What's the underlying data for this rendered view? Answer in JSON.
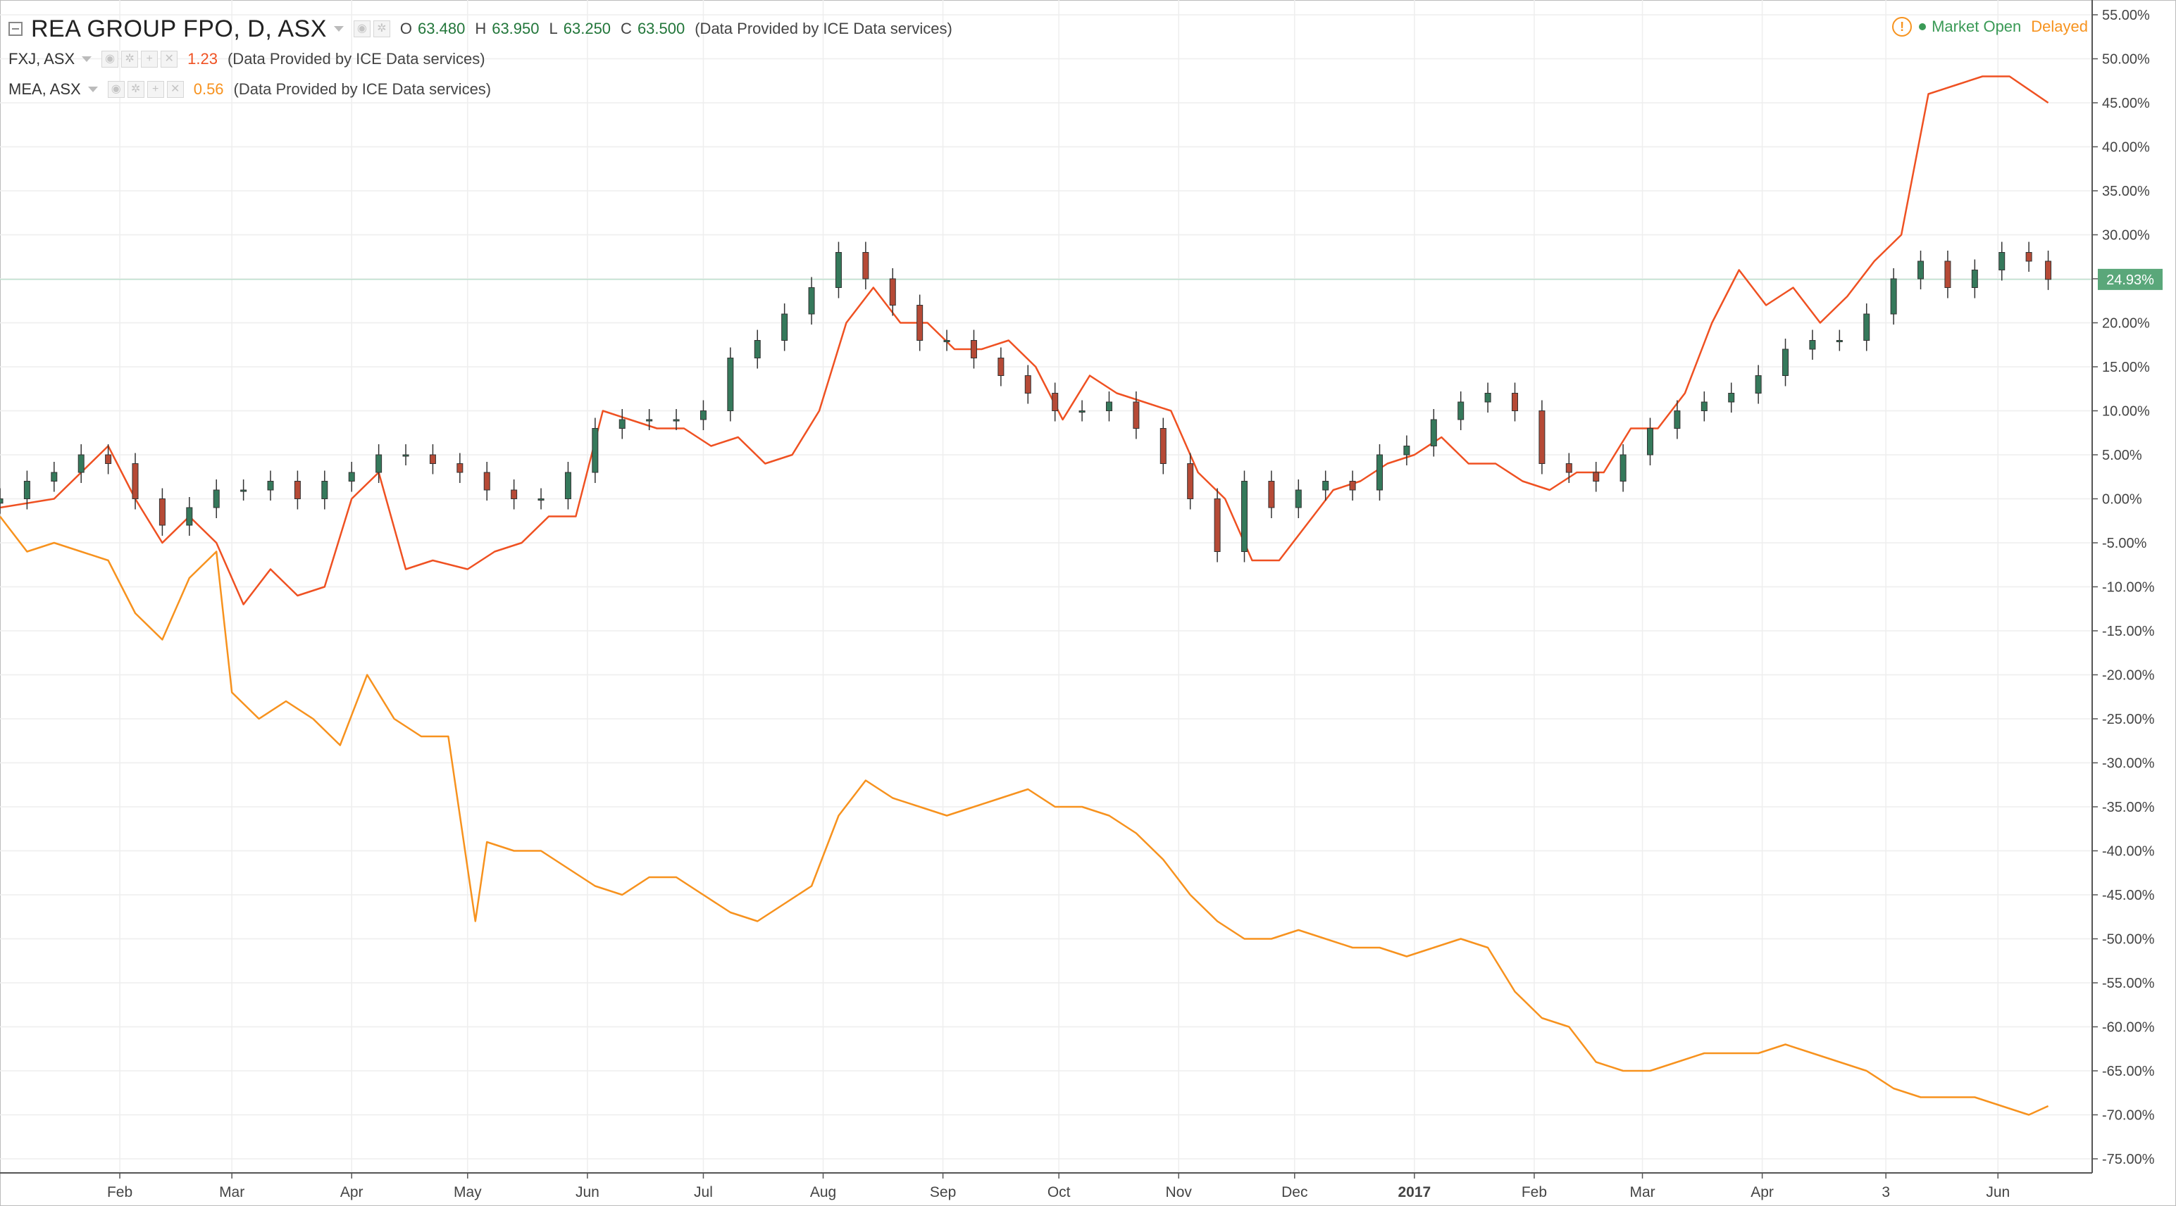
{
  "header": {
    "title": "REA GROUP FPO, D, ASX",
    "ohlc": [
      {
        "key": "O",
        "value": "63.480"
      },
      {
        "key": "H",
        "value": "63.950"
      },
      {
        "key": "L",
        "value": "63.250"
      },
      {
        "key": "C",
        "value": "63.500"
      }
    ],
    "provider": "(Data Provided by ICE Data services)",
    "status": {
      "market": "Market Open",
      "delay": "Delayed"
    }
  },
  "compare_rows": [
    {
      "symbol": "FXJ, ASX",
      "value": "1.23",
      "provider": "(Data Provided by ICE Data services)"
    },
    {
      "symbol": "MEA, ASX",
      "value": "0.56",
      "provider": "(Data Provided by ICE Data services)"
    }
  ],
  "icons": {
    "collapse": "collapse-square-icon",
    "warning": "warning-circle-icon",
    "status_dot": "market-open-dot-icon"
  },
  "colors": {
    "up_candle": "#35795b",
    "down_candle": "#b64a36",
    "fxj": "#ef5122",
    "mea": "#f7921e",
    "market_open": "#3a9a56",
    "last_price_label": "#5aa77a"
  },
  "chart_data": {
    "type": "line",
    "ylabel": "",
    "yunit": "%",
    "ylim": [
      -77,
      57
    ],
    "yticks": [
      55,
      50,
      45,
      40,
      35,
      30,
      25,
      20,
      15,
      10,
      5,
      0,
      -5,
      -10,
      -15,
      -20,
      -25,
      -30,
      -35,
      -40,
      -45,
      -50,
      -55,
      -60,
      -65,
      -70,
      -75
    ],
    "ytick_labels": [
      "55.00%",
      "50.00%",
      "45.00%",
      "40.00%",
      "35.00%",
      "30.00%",
      "25.00%",
      "20.00%",
      "15.00%",
      "10.00%",
      "5.00%",
      "0.00%",
      "-5.00%",
      "-10.00%",
      "-15.00%",
      "-20.00%",
      "-25.00%",
      "-30.00%",
      "-35.00%",
      "-40.00%",
      "-45.00%",
      "-50.00%",
      "-55.00%",
      "-60.00%",
      "-65.00%",
      "-70.00%",
      "-75.00%"
    ],
    "xlim": [
      "2016-01-01",
      "2017-06-19"
    ],
    "xticks": [
      {
        "date": "2016-02-01",
        "label": "Feb"
      },
      {
        "date": "2016-03-01",
        "label": "Mar"
      },
      {
        "date": "2016-04-01",
        "label": "Apr"
      },
      {
        "date": "2016-05-01",
        "label": "May"
      },
      {
        "date": "2016-06-01",
        "label": "Jun"
      },
      {
        "date": "2016-07-01",
        "label": "Jul"
      },
      {
        "date": "2016-08-01",
        "label": "Aug"
      },
      {
        "date": "2016-09-01",
        "label": "Sep"
      },
      {
        "date": "2016-10-01",
        "label": "Oct"
      },
      {
        "date": "2016-11-01",
        "label": "Nov"
      },
      {
        "date": "2016-12-01",
        "label": "Dec"
      },
      {
        "date": "2017-01-01",
        "label": "2017"
      },
      {
        "date": "2017-02-01",
        "label": "Feb"
      },
      {
        "date": "2017-03-01",
        "label": "Mar"
      },
      {
        "date": "2017-04-01",
        "label": "Apr"
      },
      {
        "date": "2017-05-03",
        "label": "3"
      },
      {
        "date": "2017-06-01",
        "label": "Jun"
      }
    ],
    "grid": true,
    "last_value_label": "24.93%",
    "last_value": 24.93,
    "series": [
      {
        "name": "REA GROUP FPO",
        "kind": "candlestick",
        "points": [
          [
            "2016-01-01",
            0
          ],
          [
            "2016-01-08",
            2
          ],
          [
            "2016-01-15",
            3
          ],
          [
            "2016-01-22",
            5
          ],
          [
            "2016-01-29",
            4
          ],
          [
            "2016-02-05",
            0
          ],
          [
            "2016-02-12",
            -3
          ],
          [
            "2016-02-19",
            -1
          ],
          [
            "2016-02-26",
            1
          ],
          [
            "2016-03-04",
            1
          ],
          [
            "2016-03-11",
            2
          ],
          [
            "2016-03-18",
            0
          ],
          [
            "2016-03-25",
            2
          ],
          [
            "2016-04-01",
            3
          ],
          [
            "2016-04-08",
            5
          ],
          [
            "2016-04-15",
            5
          ],
          [
            "2016-04-22",
            4
          ],
          [
            "2016-04-29",
            3
          ],
          [
            "2016-05-06",
            1
          ],
          [
            "2016-05-13",
            0
          ],
          [
            "2016-05-20",
            0
          ],
          [
            "2016-05-27",
            3
          ],
          [
            "2016-06-03",
            8
          ],
          [
            "2016-06-10",
            9
          ],
          [
            "2016-06-17",
            9
          ],
          [
            "2016-06-24",
            9
          ],
          [
            "2016-07-01",
            10
          ],
          [
            "2016-07-08",
            16
          ],
          [
            "2016-07-15",
            18
          ],
          [
            "2016-07-22",
            21
          ],
          [
            "2016-07-29",
            24
          ],
          [
            "2016-08-05",
            28
          ],
          [
            "2016-08-12",
            25
          ],
          [
            "2016-08-19",
            22
          ],
          [
            "2016-08-26",
            18
          ],
          [
            "2016-09-02",
            18
          ],
          [
            "2016-09-09",
            16
          ],
          [
            "2016-09-16",
            14
          ],
          [
            "2016-09-23",
            12
          ],
          [
            "2016-09-30",
            10
          ],
          [
            "2016-10-07",
            10
          ],
          [
            "2016-10-14",
            11
          ],
          [
            "2016-10-21",
            8
          ],
          [
            "2016-10-28",
            4
          ],
          [
            "2016-11-04",
            0
          ],
          [
            "2016-11-11",
            -6
          ],
          [
            "2016-11-18",
            2
          ],
          [
            "2016-11-25",
            -1
          ],
          [
            "2016-12-02",
            1
          ],
          [
            "2016-12-09",
            2
          ],
          [
            "2016-12-16",
            1
          ],
          [
            "2016-12-23",
            5
          ],
          [
            "2016-12-30",
            6
          ],
          [
            "2017-01-06",
            9
          ],
          [
            "2017-01-13",
            11
          ],
          [
            "2017-01-20",
            12
          ],
          [
            "2017-01-27",
            10
          ],
          [
            "2017-02-03",
            4
          ],
          [
            "2017-02-10",
            3
          ],
          [
            "2017-02-17",
            2
          ],
          [
            "2017-02-24",
            5
          ],
          [
            "2017-03-03",
            8
          ],
          [
            "2017-03-10",
            10
          ],
          [
            "2017-03-17",
            11
          ],
          [
            "2017-03-24",
            12
          ],
          [
            "2017-03-31",
            14
          ],
          [
            "2017-04-07",
            17
          ],
          [
            "2017-04-14",
            18
          ],
          [
            "2017-04-21",
            18
          ],
          [
            "2017-04-28",
            21
          ],
          [
            "2017-05-05",
            25
          ],
          [
            "2017-05-12",
            27
          ],
          [
            "2017-05-19",
            24
          ],
          [
            "2017-05-26",
            26
          ],
          [
            "2017-06-02",
            28
          ],
          [
            "2017-06-09",
            27
          ],
          [
            "2017-06-14",
            24.93
          ]
        ]
      },
      {
        "name": "FXJ, ASX",
        "kind": "line",
        "points": [
          [
            "2016-01-01",
            -1
          ],
          [
            "2016-01-15",
            0
          ],
          [
            "2016-01-29",
            6
          ],
          [
            "2016-02-05",
            0
          ],
          [
            "2016-02-12",
            -5
          ],
          [
            "2016-02-19",
            -2
          ],
          [
            "2016-02-26",
            -5
          ],
          [
            "2016-03-04",
            -12
          ],
          [
            "2016-03-11",
            -8
          ],
          [
            "2016-03-18",
            -11
          ],
          [
            "2016-03-25",
            -10
          ],
          [
            "2016-04-01",
            0
          ],
          [
            "2016-04-08",
            3
          ],
          [
            "2016-04-15",
            -8
          ],
          [
            "2016-04-22",
            -7
          ],
          [
            "2016-05-01",
            -8
          ],
          [
            "2016-05-08",
            -6
          ],
          [
            "2016-05-15",
            -5
          ],
          [
            "2016-05-22",
            -2
          ],
          [
            "2016-05-29",
            -2
          ],
          [
            "2016-06-05",
            10
          ],
          [
            "2016-06-12",
            9
          ],
          [
            "2016-06-19",
            8
          ],
          [
            "2016-06-26",
            8
          ],
          [
            "2016-07-03",
            6
          ],
          [
            "2016-07-10",
            7
          ],
          [
            "2016-07-17",
            4
          ],
          [
            "2016-07-24",
            5
          ],
          [
            "2016-07-31",
            10
          ],
          [
            "2016-08-07",
            20
          ],
          [
            "2016-08-14",
            24
          ],
          [
            "2016-08-21",
            20
          ],
          [
            "2016-08-28",
            20
          ],
          [
            "2016-09-04",
            17
          ],
          [
            "2016-09-11",
            17
          ],
          [
            "2016-09-18",
            18
          ],
          [
            "2016-09-25",
            15
          ],
          [
            "2016-10-02",
            9
          ],
          [
            "2016-10-09",
            14
          ],
          [
            "2016-10-16",
            12
          ],
          [
            "2016-10-23",
            11
          ],
          [
            "2016-10-30",
            10
          ],
          [
            "2016-11-06",
            3
          ],
          [
            "2016-11-13",
            0
          ],
          [
            "2016-11-20",
            -7
          ],
          [
            "2016-11-27",
            -7
          ],
          [
            "2016-12-04",
            -3
          ],
          [
            "2016-12-11",
            1
          ],
          [
            "2016-12-18",
            2
          ],
          [
            "2016-12-25",
            4
          ],
          [
            "2017-01-01",
            5
          ],
          [
            "2017-01-08",
            7
          ],
          [
            "2017-01-15",
            4
          ],
          [
            "2017-01-22",
            4
          ],
          [
            "2017-01-29",
            2
          ],
          [
            "2017-02-05",
            1
          ],
          [
            "2017-02-12",
            3
          ],
          [
            "2017-02-19",
            3
          ],
          [
            "2017-02-26",
            8
          ],
          [
            "2017-03-05",
            8
          ],
          [
            "2017-03-12",
            12
          ],
          [
            "2017-03-19",
            20
          ],
          [
            "2017-03-26",
            26
          ],
          [
            "2017-04-02",
            22
          ],
          [
            "2017-04-09",
            24
          ],
          [
            "2017-04-16",
            20
          ],
          [
            "2017-04-23",
            23
          ],
          [
            "2017-04-30",
            27
          ],
          [
            "2017-05-07",
            30
          ],
          [
            "2017-05-14",
            46
          ],
          [
            "2017-05-21",
            47
          ],
          [
            "2017-05-28",
            48
          ],
          [
            "2017-06-04",
            48
          ],
          [
            "2017-06-14",
            45
          ]
        ]
      },
      {
        "name": "MEA, ASX",
        "kind": "line",
        "points": [
          [
            "2016-01-01",
            -2
          ],
          [
            "2016-01-08",
            -6
          ],
          [
            "2016-01-15",
            -5
          ],
          [
            "2016-01-22",
            -6
          ],
          [
            "2016-01-29",
            -7
          ],
          [
            "2016-02-05",
            -13
          ],
          [
            "2016-02-12",
            -16
          ],
          [
            "2016-02-19",
            -9
          ],
          [
            "2016-02-26",
            -6
          ],
          [
            "2016-03-01",
            -22
          ],
          [
            "2016-03-08",
            -25
          ],
          [
            "2016-03-15",
            -23
          ],
          [
            "2016-03-22",
            -25
          ],
          [
            "2016-03-29",
            -28
          ],
          [
            "2016-04-05",
            -20
          ],
          [
            "2016-04-12",
            -25
          ],
          [
            "2016-04-19",
            -27
          ],
          [
            "2016-04-26",
            -27
          ],
          [
            "2016-05-03",
            -48
          ],
          [
            "2016-05-06",
            -39
          ],
          [
            "2016-05-13",
            -40
          ],
          [
            "2016-05-20",
            -40
          ],
          [
            "2016-05-27",
            -42
          ],
          [
            "2016-06-03",
            -44
          ],
          [
            "2016-06-10",
            -45
          ],
          [
            "2016-06-17",
            -43
          ],
          [
            "2016-06-24",
            -43
          ],
          [
            "2016-07-01",
            -45
          ],
          [
            "2016-07-08",
            -47
          ],
          [
            "2016-07-15",
            -48
          ],
          [
            "2016-07-22",
            -46
          ],
          [
            "2016-07-29",
            -44
          ],
          [
            "2016-08-05",
            -36
          ],
          [
            "2016-08-12",
            -32
          ],
          [
            "2016-08-19",
            -34
          ],
          [
            "2016-08-26",
            -35
          ],
          [
            "2016-09-02",
            -36
          ],
          [
            "2016-09-09",
            -35
          ],
          [
            "2016-09-16",
            -34
          ],
          [
            "2016-09-23",
            -33
          ],
          [
            "2016-09-30",
            -35
          ],
          [
            "2016-10-07",
            -35
          ],
          [
            "2016-10-14",
            -36
          ],
          [
            "2016-10-21",
            -38
          ],
          [
            "2016-10-28",
            -41
          ],
          [
            "2016-11-04",
            -45
          ],
          [
            "2016-11-11",
            -48
          ],
          [
            "2016-11-18",
            -50
          ],
          [
            "2016-11-25",
            -50
          ],
          [
            "2016-12-02",
            -49
          ],
          [
            "2016-12-09",
            -50
          ],
          [
            "2016-12-16",
            -51
          ],
          [
            "2016-12-23",
            -51
          ],
          [
            "2016-12-30",
            -52
          ],
          [
            "2017-01-06",
            -51
          ],
          [
            "2017-01-13",
            -50
          ],
          [
            "2017-01-20",
            -51
          ],
          [
            "2017-01-27",
            -56
          ],
          [
            "2017-02-03",
            -59
          ],
          [
            "2017-02-10",
            -60
          ],
          [
            "2017-02-17",
            -64
          ],
          [
            "2017-02-24",
            -65
          ],
          [
            "2017-03-03",
            -65
          ],
          [
            "2017-03-10",
            -64
          ],
          [
            "2017-03-17",
            -63
          ],
          [
            "2017-03-24",
            -63
          ],
          [
            "2017-03-31",
            -63
          ],
          [
            "2017-04-07",
            -62
          ],
          [
            "2017-04-14",
            -63
          ],
          [
            "2017-04-21",
            -64
          ],
          [
            "2017-04-28",
            -65
          ],
          [
            "2017-05-05",
            -67
          ],
          [
            "2017-05-12",
            -68
          ],
          [
            "2017-05-19",
            -68
          ],
          [
            "2017-05-26",
            -68
          ],
          [
            "2017-06-02",
            -69
          ],
          [
            "2017-06-09",
            -70
          ],
          [
            "2017-06-14",
            -69
          ]
        ]
      }
    ]
  }
}
